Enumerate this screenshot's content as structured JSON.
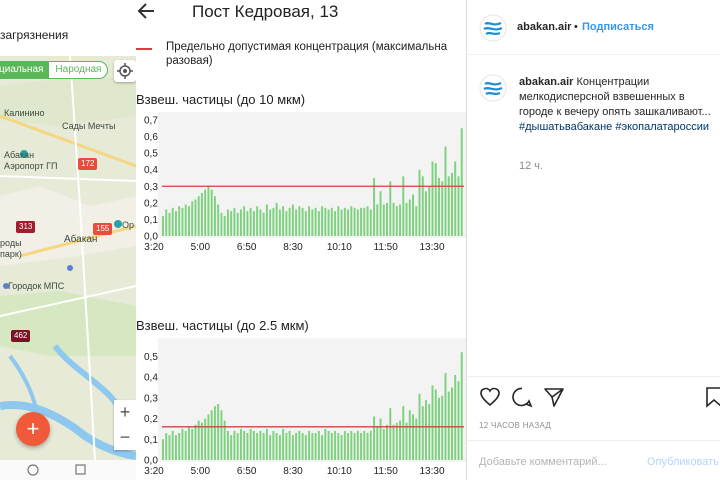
{
  "map_panel": {
    "title": "загрязнения",
    "segment": {
      "official": "циальная",
      "public": "Народная"
    },
    "places": {
      "kalinino": "Калинино",
      "sady_mechty": "Сады Мечты",
      "abakan_airport": "Абакан\nАэропорт ГП",
      "abakan": "Абакан",
      "gorody_park": "роды\nпарк)",
      "gorodok_mps": "Городок МПС",
      "op": "Ор"
    },
    "markers": [
      {
        "value": "172",
        "color": "#e74c3c"
      },
      {
        "value": "313",
        "color": "#a01d2d"
      },
      {
        "value": "155",
        "color": "#e74c3c"
      },
      {
        "value": "462",
        "color": "#7a1424"
      }
    ],
    "icons": {
      "locate": "crosshair-icon",
      "zoom_in": "plus-icon",
      "zoom_out": "minus-icon",
      "fab": "plus-icon",
      "nav_home": "circle-icon",
      "nav_recent": "square-icon"
    },
    "zoom_in_label": "+",
    "zoom_out_label": "−",
    "fab_label": "+"
  },
  "chart_panel": {
    "back_icon": "arrow-left-icon",
    "title": "Пост Кедровая, 13",
    "legend": "Предельно допустимая концентрация (максимальна разовая)",
    "limit_color": "#d2433b",
    "bar_color": "#7dd27d"
  },
  "chart_data": [
    {
      "type": "bar",
      "title": "Взвеш. частицы (до 10 мкм)",
      "xlabel": "",
      "ylabel": "",
      "ylim": [
        0,
        0.7
      ],
      "yticks": [
        "0,0",
        "0,1",
        "0,2",
        "0,3",
        "0,4",
        "0,5",
        "0,6",
        "0,7"
      ],
      "xticks": [
        "3:20",
        "5:00",
        "6:50",
        "8:30",
        "10:10",
        "11:50",
        "13:30"
      ],
      "threshold": 0.3,
      "values": [
        0.12,
        0.16,
        0.14,
        0.17,
        0.15,
        0.18,
        0.17,
        0.19,
        0.18,
        0.21,
        0.22,
        0.24,
        0.26,
        0.28,
        0.3,
        0.28,
        0.24,
        0.19,
        0.14,
        0.12,
        0.16,
        0.15,
        0.17,
        0.14,
        0.16,
        0.18,
        0.15,
        0.17,
        0.15,
        0.18,
        0.16,
        0.14,
        0.19,
        0.16,
        0.17,
        0.2,
        0.16,
        0.18,
        0.15,
        0.17,
        0.19,
        0.16,
        0.18,
        0.17,
        0.15,
        0.18,
        0.16,
        0.17,
        0.15,
        0.18,
        0.17,
        0.16,
        0.17,
        0.15,
        0.18,
        0.16,
        0.17,
        0.16,
        0.18,
        0.17,
        0.16,
        0.17,
        0.17,
        0.18,
        0.16,
        0.35,
        0.19,
        0.27,
        0.19,
        0.2,
        0.33,
        0.2,
        0.18,
        0.19,
        0.36,
        0.2,
        0.22,
        0.25,
        0.18,
        0.4,
        0.36,
        0.27,
        0.3,
        0.45,
        0.44,
        0.35,
        0.33,
        0.54,
        0.36,
        0.38,
        0.45,
        0.36,
        0.65
      ]
    },
    {
      "type": "bar",
      "title": "Взвеш. частицы (до 2.5 мкм)",
      "xlabel": "",
      "ylabel": "",
      "ylim": [
        0,
        0.55
      ],
      "yticks": [
        "0,0",
        "0,1",
        "0,2",
        "0,3",
        "0,4",
        "0,5"
      ],
      "xticks": [
        "3:20",
        "5:00",
        "6:50",
        "8:30",
        "10:10",
        "11:50",
        "13:30"
      ],
      "threshold": 0.16,
      "values": [
        0.1,
        0.13,
        0.12,
        0.14,
        0.12,
        0.13,
        0.15,
        0.14,
        0.16,
        0.15,
        0.17,
        0.19,
        0.18,
        0.2,
        0.22,
        0.24,
        0.26,
        0.27,
        0.24,
        0.19,
        0.14,
        0.12,
        0.14,
        0.13,
        0.15,
        0.14,
        0.13,
        0.15,
        0.14,
        0.13,
        0.14,
        0.13,
        0.15,
        0.12,
        0.14,
        0.13,
        0.12,
        0.15,
        0.13,
        0.14,
        0.12,
        0.13,
        0.14,
        0.13,
        0.12,
        0.14,
        0.13,
        0.13,
        0.14,
        0.12,
        0.15,
        0.14,
        0.13,
        0.14,
        0.13,
        0.12,
        0.14,
        0.13,
        0.14,
        0.13,
        0.14,
        0.13,
        0.14,
        0.13,
        0.14,
        0.21,
        0.16,
        0.2,
        0.15,
        0.17,
        0.25,
        0.17,
        0.18,
        0.19,
        0.26,
        0.18,
        0.24,
        0.22,
        0.2,
        0.32,
        0.26,
        0.29,
        0.27,
        0.36,
        0.34,
        0.3,
        0.31,
        0.42,
        0.33,
        0.35,
        0.41,
        0.38,
        0.52
      ]
    }
  ],
  "instagram": {
    "username": "abakan.air",
    "dot": "•",
    "follow": "Подписаться",
    "caption_text": " Концентрации мелкодисперсной взвешенных в городе к вечеру опять зашкаливают...",
    "tags": "#дышатьвабакане #экопалатароссии",
    "time_short": "12 ч.",
    "time_long": "12 ЧАСОВ НАЗАД",
    "comment_placeholder": "Добавьте комментарий...",
    "publish": "Опубликовать",
    "icons": [
      "heart-icon",
      "comment-icon",
      "share-icon",
      "bookmark-icon"
    ]
  }
}
